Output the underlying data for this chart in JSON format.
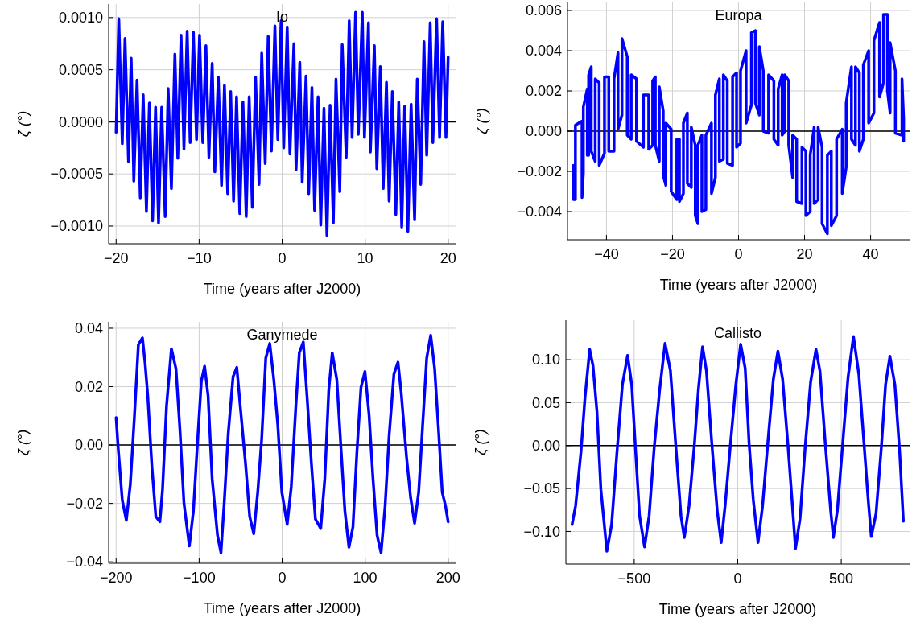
{
  "chart_data": [
    {
      "type": "line",
      "title": "Io",
      "xlabel": "Time (years after J2000)",
      "ylabel": "ζ (°)",
      "xlim": [
        -20.9,
        20.9
      ],
      "ylim": [
        -0.00117,
        0.00113
      ],
      "xticks": [
        {
          "value": -20,
          "label": "−20"
        },
        {
          "value": -10,
          "label": "−10"
        },
        0,
        10,
        20
      ],
      "yticks": [
        {
          "value": -0.001,
          "label": "−0.0010"
        },
        {
          "value": -0.0005,
          "label": "−0.0005"
        },
        {
          "value": 0,
          "label": "0.0000"
        },
        {
          "value": 0.0005,
          "label": "0.0005"
        },
        {
          "value": 0.001,
          "label": "0.0010"
        }
      ],
      "grid": true,
      "line_style": "solid",
      "ref_lines": [
        {
          "axis": "y",
          "value": 0,
          "color": "#000000"
        }
      ],
      "series": [
        {
          "color": "#0000ff",
          "x": [
            -20,
            -19.68,
            -19.26,
            -18.93,
            -18.51,
            -18.19,
            -17.87,
            -17.48,
            -17.09,
            -16.74,
            -16.35,
            -15.99,
            -15.61,
            -15.25,
            -14.89,
            -14.51,
            -14.09,
            -13.73,
            -13.34,
            -12.92,
            -12.57,
            -12.18,
            -11.83,
            -11.44,
            -11.08,
            -10.69,
            -10.31,
            -9.95,
            -9.56,
            -9.18,
            -8.82,
            -8.43,
            -8.11,
            -7.69,
            -7.3,
            -6.95,
            -6.56,
            -6.2,
            -5.85,
            -5.49,
            -5.1,
            -4.72,
            -4.33,
            -3.97,
            -3.59,
            -3.2,
            -2.78,
            -2.46,
            -2.04,
            -1.68,
            -1.29,
            -0.87,
            -0.52,
            -0.13,
            0.19,
            0.61,
            0.94,
            1.42,
            1.68,
            2.13,
            2.42,
            2.88,
            3.2,
            3.59,
            3.91,
            4.33,
            4.65,
            5.04,
            5.4,
            5.78,
            6.17,
            6.49,
            6.95,
            7.24,
            7.72,
            8.08,
            8.43,
            8.85,
            9.18,
            9.66,
            9.92,
            10.4,
            10.63,
            11.11,
            11.41,
            11.83,
            12.18,
            12.57,
            12.89,
            13.28,
            13.7,
            14.05,
            14.41,
            14.77,
            15.15,
            15.54,
            15.96,
            16.28,
            16.7,
            17.09,
            17.42,
            17.84,
            18.16,
            18.61,
            18.97,
            19.35,
            19.74,
            20
          ],
          "values": [
            -0.0001,
            0.00099,
            -0.00021,
            0.0008,
            -0.00038,
            0.00061,
            -0.00057,
            0.0004,
            -0.00073,
            0.00026,
            -0.00086,
            0.00018,
            -0.00095,
            0.00014,
            -0.00097,
            0.00014,
            -0.00091,
            0.00032,
            -0.00064,
            0.00065,
            -0.00035,
            0.00083,
            -0.00026,
            0.00087,
            -0.0002,
            0.00086,
            -0.00017,
            0.00083,
            -0.0002,
            0.00073,
            -0.00034,
            0.00056,
            -0.00048,
            0.00043,
            -0.00061,
            0.00035,
            -0.00069,
            0.00029,
            -0.00076,
            0.00024,
            -0.00088,
            0.00019,
            -0.00091,
            0.00024,
            -0.00082,
            0.00043,
            -0.0006,
            0.00066,
            -0.0004,
            0.00082,
            -0.00028,
            0.00092,
            -0.00017,
            0.00097,
            -0.00025,
            0.00091,
            -0.00031,
            0.00075,
            -0.00046,
            0.00057,
            -0.00058,
            0.00044,
            -0.00069,
            0.00033,
            -0.00085,
            0.00024,
            -0.00099,
            0.00013,
            -0.00109,
            0.00016,
            -0.00097,
            0.00041,
            -0.00067,
            0.00074,
            -0.00034,
            0.00097,
            -0.00015,
            0.00105,
            -0.00012,
            0.00105,
            -0.00015,
            0.00095,
            -0.00029,
            0.00073,
            -0.00045,
            0.00053,
            -0.00064,
            0.00038,
            -0.00076,
            0.00029,
            -0.00089,
            0.00019,
            -0.00101,
            0.00015,
            -0.00105,
            0.00017,
            -0.00094,
            0.00041,
            -0.0006,
            0.00077,
            -0.00032,
            0.00095,
            -0.0002,
            0.00099,
            -0.00015,
            0.00096,
            -0.00015,
            0.00062
          ]
        }
      ]
    },
    {
      "type": "line",
      "title": "Europa",
      "xlabel": "Time (years after J2000)",
      "ylabel": "ζ (°)",
      "xlim": [
        -51.8,
        51.8
      ],
      "ylim": [
        -0.0054,
        0.0064
      ],
      "xticks": [
        {
          "value": -40,
          "label": "−40"
        },
        {
          "value": -20,
          "label": "−20"
        },
        0,
        20,
        40
      ],
      "yticks": [
        {
          "value": -0.004,
          "label": "−0.004"
        },
        {
          "value": -0.002,
          "label": "−0.002"
        },
        {
          "value": 0,
          "label": "0.000"
        },
        {
          "value": 0.002,
          "label": "0.002"
        },
        {
          "value": 0.004,
          "label": "0.004"
        },
        {
          "value": 0.006,
          "label": "0.006"
        }
      ],
      "grid": true,
      "line_style": "solid",
      "ref_lines": [
        {
          "axis": "y",
          "value": 0,
          "color": "#000000"
        }
      ],
      "series": [
        {
          "color": "#0000ff",
          "x": [
            -50,
            -50,
            -49.4,
            -49.4,
            -47.4,
            -47.4,
            -47,
            -47,
            -45.8,
            -45.8,
            -45.4,
            -45.4,
            -44.6,
            -44.6,
            -43.4,
            -43.4,
            -42.2,
            -42.2,
            -40.6,
            -40.6,
            -39.3,
            -39.3,
            -37.7,
            -37.7,
            -36.5,
            -36.5,
            -35.3,
            -35.3,
            -33.7,
            -33.7,
            -32.5,
            -32.5,
            -30.9,
            -30.9,
            -28.8,
            -28.8,
            -27.2,
            -27.2,
            -26,
            -26,
            -25.2,
            -25.2,
            -24,
            -24,
            -22.8,
            -22.8,
            -22,
            -22,
            -20.4,
            -20.4,
            -18.7,
            -18.7,
            -17.9,
            -17.9,
            -16.7,
            -16.7,
            -15.5,
            -15.5,
            -14.3,
            -14.3,
            -13.1,
            -13.1,
            -12.3,
            -12.3,
            -11.1,
            -11.1,
            -9.9,
            -9.9,
            -8.2,
            -8.2,
            -7,
            -7,
            -5.8,
            -5.8,
            -4.6,
            -4.6,
            -3.4,
            -3.4,
            -1.8,
            -1.8,
            -0.6,
            -0.6,
            0.6,
            0.6,
            2.3,
            2.3,
            3.9,
            3.9,
            5.1,
            5.1,
            6.3,
            6.3,
            7.5,
            7.5,
            9.1,
            9.1,
            10.7,
            10.7,
            12,
            12,
            13.2,
            13.2,
            14,
            14,
            15.2,
            15.2,
            16.4,
            16.4,
            17.6,
            17.6,
            19.2,
            19.2,
            20.4,
            20.4,
            21.7,
            21.7,
            22.9,
            22.9,
            24.1,
            24.1,
            25.3,
            25.3,
            26.9,
            26.9,
            28.1,
            28.1,
            29.7,
            29.7,
            31.4,
            31.4,
            32.6,
            32.6,
            34.2,
            34.2,
            35.4,
            35.4,
            36.6,
            36.6,
            37.8,
            37.8,
            39.4,
            39.4,
            41,
            41,
            42.7,
            42.7,
            43.9,
            43.9,
            45.1,
            45.1,
            45.9,
            45.9,
            47.5,
            47.5,
            49.5,
            49.5,
            50,
            50
          ],
          "values": [
            -0.0017,
            -0.0034,
            -0.0034,
            0.0003,
            0.0005,
            -0.0033,
            -0.0021,
            0.0012,
            0.0021,
            -0.0012,
            -0.0012,
            0.0028,
            0.0032,
            -0.001,
            -0.0015,
            0.0026,
            0.0024,
            -0.0017,
            -0.0011,
            0.0027,
            0.0027,
            -0.001,
            -0.001,
            0.0026,
            0.0039,
            0.0001,
            0.0008,
            0.0046,
            0.0037,
            -0.0002,
            -0.0004,
            0.0028,
            0.0026,
            -0.0005,
            -0.0008,
            0.0018,
            0.0018,
            -0.0009,
            -0.0007,
            0.0025,
            0.0027,
            -0.0007,
            -0.0015,
            0.0022,
            0.001,
            -0.0022,
            -0.0027,
            0.0004,
            0.0001,
            -0.003,
            -0.0034,
            -0.0004,
            -0.0004,
            -0.0035,
            -0.0031,
            0.0004,
            0.0009,
            -0.0026,
            -0.0028,
            0.0002,
            -0.0007,
            -0.0042,
            -0.0046,
            -0.0007,
            -0.0002,
            -0.004,
            -0.0039,
            -0.0002,
            0.0004,
            -0.0031,
            -0.0023,
            0.0018,
            0.0026,
            -0.0015,
            -0.0014,
            0.0028,
            0.0025,
            -0.0016,
            -0.0017,
            0.0027,
            0.0029,
            -0.0008,
            -0.0006,
            0.003,
            0.004,
            0.0004,
            0.0013,
            0.0049,
            0.005,
            0.0014,
            0.0008,
            0.0042,
            0.003,
            0,
            -0.0001,
            0.0028,
            0.0025,
            -0.0004,
            -0.0007,
            0.0021,
            0.0028,
            -0.0002,
            0,
            0.0028,
            0.0025,
            -0.0007,
            -0.0023,
            -0.0002,
            -0.0004,
            -0.0035,
            -0.0036,
            -0.0008,
            -0.001,
            -0.0042,
            -0.004,
            -0.0012,
            0.0002,
            -0.0036,
            -0.0034,
            0.0002,
            -0.0008,
            -0.0046,
            -0.0051,
            -0.0012,
            -0.001,
            -0.0047,
            -0.0042,
            -0.0004,
            0.0001,
            -0.0031,
            -0.0018,
            0.0014,
            0.0032,
            -0.0004,
            -0.0007,
            0.0032,
            0.0029,
            -0.001,
            -0.0004,
            0.0033,
            0.004,
            0.0004,
            0.0009,
            0.0045,
            0.0054,
            0.0017,
            0.0024,
            0.0058,
            0.0058,
            0.002,
            0.0009,
            0.0044,
            0.003,
            -0.0001,
            -0.0002,
            0.0026,
            0.0006,
            -0.0005
          ]
        }
      ]
    },
    {
      "type": "line",
      "title": "Ganymede",
      "xlabel": "Time (years after J2000)",
      "ylabel": "ζ (°)",
      "xlim": [
        -209,
        209
      ],
      "ylim": [
        -0.0405,
        0.0422
      ],
      "xticks": [
        {
          "value": -200,
          "label": "−200"
        },
        {
          "value": -100,
          "label": "−100"
        },
        0,
        100,
        200
      ],
      "yticks": [
        {
          "value": -0.04,
          "label": "−0.04"
        },
        {
          "value": -0.02,
          "label": "−0.02"
        },
        {
          "value": 0,
          "label": "0.00"
        },
        {
          "value": 0.02,
          "label": "0.02"
        },
        {
          "value": 0.04,
          "label": "0.04"
        }
      ],
      "grid": true,
      "line_style": "solid",
      "ref_lines": [
        {
          "axis": "y",
          "value": 0,
          "color": "#000000"
        }
      ],
      "series": [
        {
          "color": "#0000ff",
          "x": [
            -200,
            -197.4,
            -192.6,
            -187.7,
            -182.9,
            -178,
            -173.2,
            -168.3,
            -165.1,
            -161.9,
            -157,
            -152.2,
            -147.3,
            -144.1,
            -139.3,
            -133.4,
            -127.9,
            -123.1,
            -118.3,
            -111.8,
            -106.9,
            -102.1,
            -97.3,
            -93.4,
            -89.2,
            -84.3,
            -77.9,
            -73.7,
            -69.8,
            -64.9,
            -59.1,
            -54.6,
            -50.4,
            -43.9,
            -39.1,
            -34.2,
            -29.4,
            -24.6,
            -19.7,
            -14.9,
            -10,
            -5.2,
            -0.3,
            6.1,
            11,
            16.5,
            20.7,
            25.5,
            30.4,
            35.2,
            40.1,
            46.5,
            51.4,
            56.2,
            60.4,
            65.9,
            70.8,
            75.6,
            80.5,
            85.3,
            90.1,
            95,
            99.8,
            104.7,
            109.5,
            114.4,
            119.2,
            124.1,
            128.9,
            134.7,
            139.6,
            143.5,
            149.9,
            154.8,
            159.6,
            164.5,
            169.3,
            174.2,
            179,
            183.8,
            188.7,
            192.9,
            196.8,
            200
          ],
          "values": [
            0.0094,
            -0.0015,
            -0.0189,
            -0.0258,
            -0.0134,
            0.0096,
            0.0344,
            0.0367,
            0.028,
            0.0169,
            -0.007,
            -0.0245,
            -0.0263,
            -0.0153,
            0.0132,
            0.033,
            0.0261,
            0.005,
            -0.0199,
            -0.0346,
            -0.0226,
            0.0004,
            0.022,
            0.027,
            0.0169,
            -0.0116,
            -0.0309,
            -0.0369,
            -0.0199,
            0.004,
            0.0234,
            0.0266,
            0.0132,
            -0.007,
            -0.0245,
            -0.0304,
            -0.0162,
            0.0022,
            0.0298,
            0.0348,
            0.0224,
            0.0068,
            -0.0162,
            -0.0272,
            -0.0143,
            0.0132,
            0.0316,
            0.0353,
            0.0151,
            -0.0061,
            -0.0254,
            -0.0286,
            -0.0116,
            0.0188,
            0.0316,
            0.0224,
            -0.0006,
            -0.0226,
            -0.035,
            -0.0281,
            -0.0024,
            0.0197,
            0.0252,
            0.0105,
            -0.0116,
            -0.0309,
            -0.0369,
            -0.0208,
            0.0031,
            0.0243,
            0.0284,
            0.0178,
            -0.0042,
            -0.018,
            -0.0268,
            -0.0162,
            0.0068,
            0.0298,
            0.0376,
            0.0261,
            0.004,
            -0.0162,
            -0.0208,
            -0.0263
          ]
        }
      ]
    },
    {
      "type": "line",
      "title": "Callisto",
      "xlabel": "Time (years after J2000)",
      "ylabel": "ζ (°)",
      "xlim": [
        -830,
        830
      ],
      "ylim": [
        -0.138,
        0.146
      ],
      "xticks": [
        {
          "value": -500,
          "label": "−500"
        },
        0,
        500
      ],
      "yticks": [
        {
          "value": -0.1,
          "label": "−0.10"
        },
        {
          "value": -0.05,
          "label": "−0.05"
        },
        {
          "value": 0,
          "label": "0.00"
        },
        {
          "value": 0.05,
          "label": "0.05"
        },
        {
          "value": 0.1,
          "label": "0.10"
        }
      ],
      "grid": true,
      "line_style": "solid",
      "ref_lines": [
        {
          "axis": "y",
          "value": 0,
          "color": "#000000"
        }
      ],
      "series": [
        {
          "color": "#0000ff",
          "x": [
            -800,
            -783,
            -757,
            -738,
            -715,
            -699,
            -680,
            -661,
            -632,
            -609,
            -583,
            -557,
            -532,
            -512,
            -493,
            -474,
            -450,
            -428,
            -403,
            -377,
            -351,
            -325,
            -299,
            -274,
            -258,
            -235,
            -209,
            -190,
            -170,
            -151,
            -125,
            -99,
            -80,
            -61,
            -35,
            -9,
            14,
            36,
            55,
            75,
            98,
            120,
            146,
            172,
            194,
            217,
            243,
            262,
            279,
            301,
            326,
            352,
            378,
            397,
            423,
            449,
            462,
            481,
            507,
            533,
            559,
            585,
            610,
            630,
            645,
            668,
            694,
            714,
            735,
            759,
            782,
            800
          ],
          "values": [
            -0.092,
            -0.07,
            -0.007,
            0.055,
            0.112,
            0.093,
            0.04,
            -0.051,
            -0.123,
            -0.092,
            -0.007,
            0.071,
            0.105,
            0.071,
            -0.007,
            -0.082,
            -0.118,
            -0.082,
            -0.001,
            0.065,
            0.119,
            0.087,
            -0.001,
            -0.082,
            -0.107,
            -0.07,
            0.002,
            0.065,
            0.115,
            0.087,
            0.002,
            -0.076,
            -0.113,
            -0.07,
            0.002,
            0.071,
            0.118,
            0.09,
            0.002,
            -0.063,
            -0.113,
            -0.07,
            0.005,
            0.077,
            0.11,
            0.077,
            -0.001,
            -0.063,
            -0.12,
            -0.085,
            -0.001,
            0.074,
            0.112,
            0.087,
            0.002,
            -0.076,
            -0.107,
            -0.076,
            0.002,
            0.08,
            0.127,
            0.083,
            0.002,
            -0.063,
            -0.106,
            -0.079,
            -0.001,
            0.071,
            0.104,
            0.071,
            -0.007,
            -0.088
          ]
        }
      ]
    }
  ]
}
